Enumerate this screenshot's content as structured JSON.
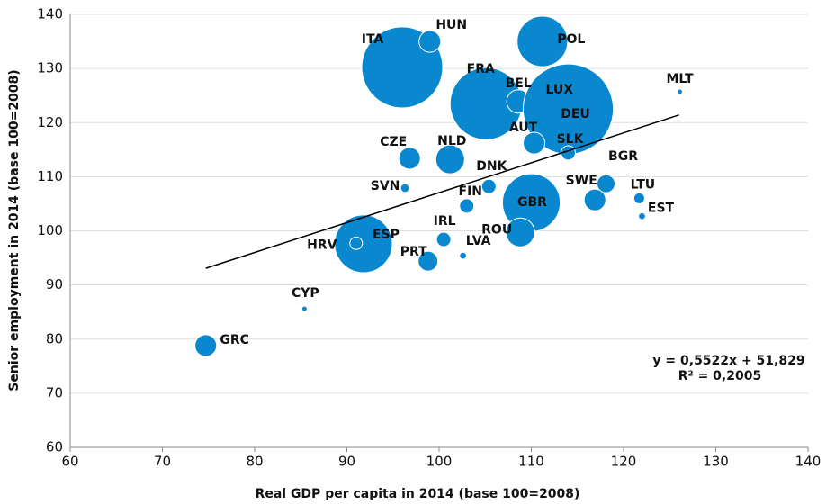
{
  "chart_data": {
    "type": "scatter",
    "x_label": "Real GDP per capita in 2014 (base 100=2008)",
    "y_label": "Senior employment in 2014 (base 100=2008)",
    "xlim": [
      60,
      140
    ],
    "xticks": [
      60,
      70,
      80,
      90,
      100,
      110,
      120,
      130,
      140
    ],
    "ylim": [
      60,
      140
    ],
    "yticks": [
      60,
      70,
      80,
      90,
      100,
      110,
      120,
      130,
      140
    ],
    "grid": true,
    "color": "#0a88cf",
    "series": [
      {
        "names": [
          "ITA",
          "HUN",
          "POL",
          "FRA",
          "BEL",
          "LUX",
          "DEU",
          "MLT",
          "AUT",
          "SLK",
          "CZE",
          "NLD",
          "BGR",
          "DNK",
          "SVN",
          "SWE",
          "LTU",
          "FIN",
          "GBR",
          "EST",
          "ROU",
          "IRL",
          "ESP",
          "HRV",
          "PRT",
          "LVA",
          "CYP",
          "GRC"
        ],
        "x": [
          96.0,
          99.0,
          111.2,
          105.1,
          108.6,
          111.1,
          114.0,
          126.1,
          110.3,
          114.0,
          96.8,
          101.2,
          118.1,
          105.4,
          96.3,
          116.9,
          121.7,
          103.0,
          110.0,
          122.0,
          108.8,
          100.5,
          91.8,
          91.0,
          98.8,
          102.6,
          85.4,
          74.7
        ],
        "values": [
          130.2,
          135.0,
          135.0,
          123.5,
          123.9,
          124.7,
          122.5,
          125.7,
          116.2,
          114.4,
          113.4,
          113.2,
          108.7,
          108.2,
          107.9,
          105.7,
          106.0,
          104.6,
          105.2,
          102.7,
          99.7,
          98.4,
          97.6,
          97.7,
          94.4,
          95.4,
          85.6,
          78.8
        ],
        "sizes": [
          67,
          4.8,
          26,
          53,
          5.6,
          0.3,
          83,
          0.3,
          4.8,
          2.1,
          4.8,
          8.5,
          3.3,
          2.1,
          0.8,
          4.8,
          1.2,
          2.1,
          34,
          0.5,
          8.5,
          2.1,
          34,
          1.6,
          4,
          0.5,
          0.3,
          4.8
        ]
      }
    ],
    "trendline": {
      "label": "y = 0,5522x + 51,829",
      "r2_label": "R² = 0,2005",
      "slope": 0.5522,
      "intercept": 51.829,
      "x_range": [
        74.7,
        126
      ]
    }
  }
}
